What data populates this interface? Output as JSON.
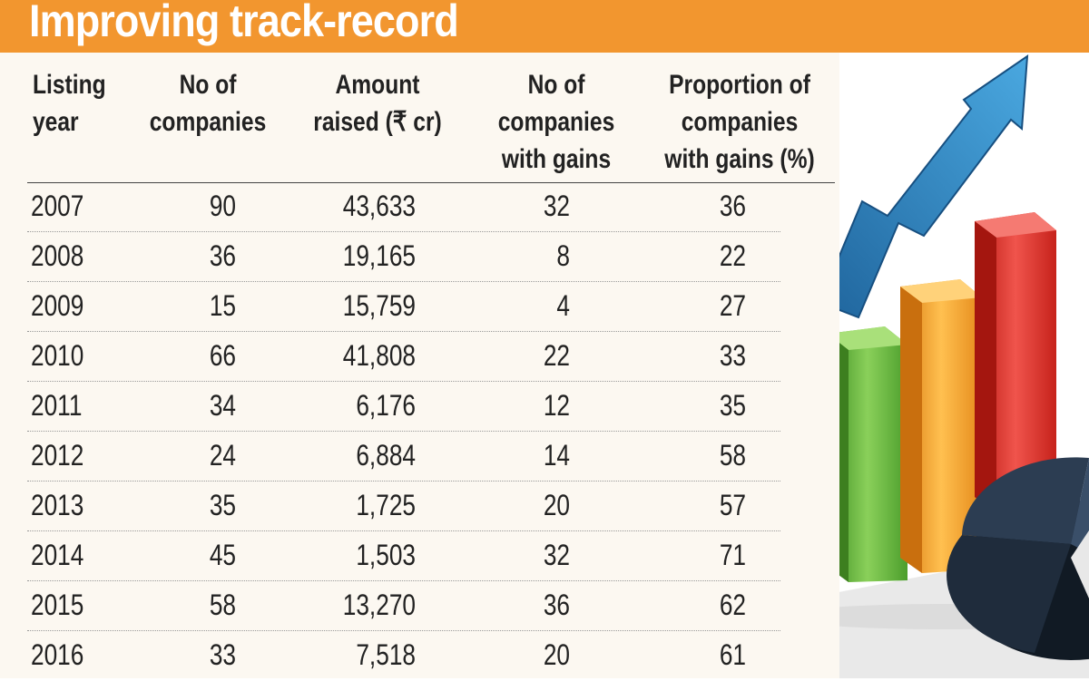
{
  "title": "Improving track-record",
  "table": {
    "headers": [
      [
        "Listing",
        "year"
      ],
      [
        "No of",
        "companies"
      ],
      [
        "Amount",
        "raised (₹ cr)"
      ],
      [
        "No of",
        "companies",
        "with gains"
      ],
      [
        "Proportion of",
        "companies",
        "with gains (%)"
      ]
    ],
    "rows": [
      [
        "2007",
        "90",
        "43,633",
        "32",
        "36"
      ],
      [
        "2008",
        "36",
        "19,165",
        "8",
        "22"
      ],
      [
        "2009",
        "15",
        "15,759",
        "4",
        "27"
      ],
      [
        "2010",
        "66",
        "41,808",
        "22",
        "33"
      ],
      [
        "2011",
        "34",
        "6,176",
        "12",
        "35"
      ],
      [
        "2012",
        "24",
        "6,884",
        "14",
        "58"
      ],
      [
        "2013",
        "35",
        "1,725",
        "20",
        "57"
      ],
      [
        "2014",
        "45",
        "1,503",
        "32",
        "71"
      ],
      [
        "2015",
        "58",
        "13,270",
        "36",
        "62"
      ],
      [
        "2016",
        "33",
        "7,518",
        "20",
        "61"
      ]
    ]
  },
  "colors": {
    "title_bar": "#f2962f",
    "table_bg": "#fcf8f1",
    "arrow": "#2f86c8",
    "bar_blue": "#3aa3dc",
    "bar_green": "#5fb23a",
    "bar_orange": "#f3a12a",
    "bar_red": "#de2b25",
    "pie_dark": "#1f2c3c"
  },
  "illustration": {
    "icons": [
      "rising-arrow-icon",
      "bar-chart-icon",
      "pie-chart-icon"
    ]
  }
}
